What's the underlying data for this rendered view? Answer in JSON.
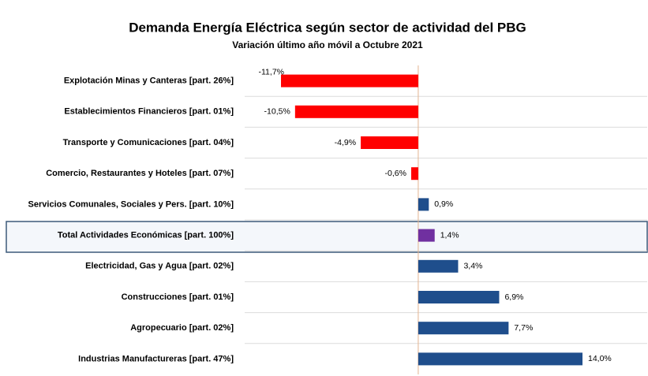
{
  "chart_data": {
    "type": "bar",
    "orientation": "horizontal",
    "title": "Demanda Energía Eléctrica según sector de actividad del PBG",
    "subtitle": "Variación último año móvil a Octubre 2021",
    "categories": [
      "Explotación Minas y Canteras [part. 26%]",
      "Establecimientos Financieros [part. 01%]",
      "Transporte y Comunicaciones [part. 04%]",
      "Comercio, Restaurantes y Hoteles [part. 07%]",
      "Servicios Comunales, Sociales y Pers. [part. 10%]",
      "Total Actividades Económicas [part. 100%]",
      "Electricidad, Gas y Agua [part. 02%]",
      "Construcciones [part. 01%]",
      "Agropecuario [part. 02%]",
      "Industrias Manufactureras [part. 47%]"
    ],
    "values": [
      -11.7,
      -10.5,
      -4.9,
      -0.6,
      0.9,
      1.4,
      3.4,
      6.9,
      7.7,
      14.0
    ],
    "value_labels": [
      "-11,7%",
      "-10,5%",
      "-4,9%",
      "-0,6%",
      "0,9%",
      "1,4%",
      "3,4%",
      "6,9%",
      "7,7%",
      "14,0%"
    ],
    "colors": [
      "#ff0000",
      "#ff0000",
      "#ff0000",
      "#ff0000",
      "#1f4e8c",
      "#7030a0",
      "#1f4e8c",
      "#1f4e8c",
      "#1f4e8c",
      "#1f4e8c"
    ]
  }
}
